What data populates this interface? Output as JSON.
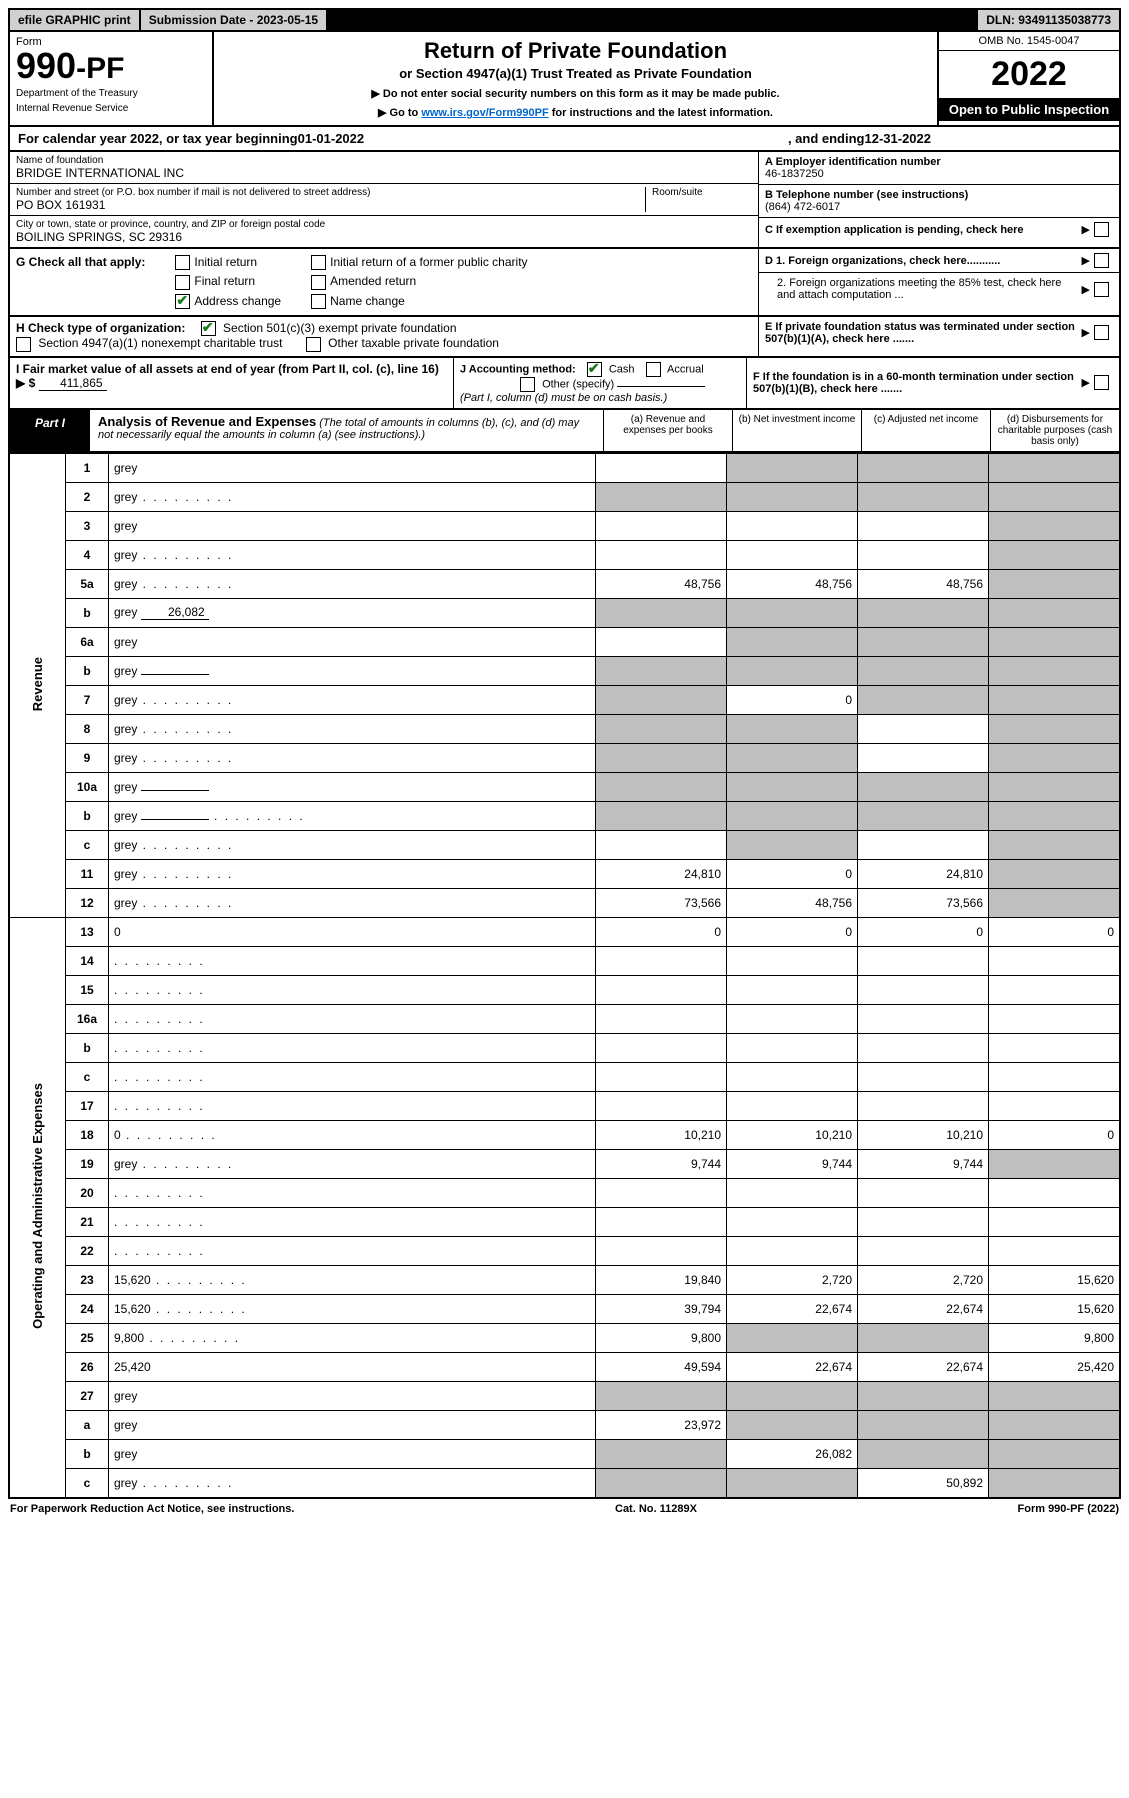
{
  "top": {
    "efile": "efile GRAPHIC print",
    "sub_date_label": "Submission Date - 2023-05-15",
    "dln": "DLN: 93491135038773"
  },
  "header": {
    "form_label": "Form",
    "form_number": "990-PF",
    "dept1": "Department of the Treasury",
    "dept2": "Internal Revenue Service",
    "title": "Return of Private Foundation",
    "subtitle": "or Section 4947(a)(1) Trust Treated as Private Foundation",
    "note1": "▶ Do not enter social security numbers on this form as it may be made public.",
    "note2_pre": "▶ Go to ",
    "note2_link": "www.irs.gov/Form990PF",
    "note2_post": " for instructions and the latest information.",
    "omb": "OMB No. 1545-0047",
    "year": "2022",
    "open": "Open to Public Inspection"
  },
  "cal_year": {
    "pre": "For calendar year 2022, or tax year beginning ",
    "begin": "01-01-2022",
    "mid": ", and ending ",
    "end": "12-31-2022"
  },
  "info": {
    "name_label": "Name of foundation",
    "name": "BRIDGE INTERNATIONAL INC",
    "addr_label": "Number and street (or P.O. box number if mail is not delivered to street address)",
    "addr": "PO BOX 161931",
    "room_label": "Room/suite",
    "city_label": "City or town, state or province, country, and ZIP or foreign postal code",
    "city": "BOILING SPRINGS, SC  29316",
    "a_label": "A Employer identification number",
    "ein": "46-1837250",
    "b_label": "B Telephone number (see instructions)",
    "phone": "(864) 472-6017",
    "c_label": "C If exemption application is pending, check here"
  },
  "g": {
    "label": "G Check all that apply:",
    "opts": [
      "Initial return",
      "Initial return of a former public charity",
      "Final return",
      "Amended return",
      "Address change",
      "Name change"
    ]
  },
  "d": {
    "d1": "D 1. Foreign organizations, check here...........",
    "d2": "2. Foreign organizations meeting the 85% test, check here and attach computation ..."
  },
  "h": {
    "label": "H Check type of organization:",
    "opt1": "Section 501(c)(3) exempt private foundation",
    "opt2": "Section 4947(a)(1) nonexempt charitable trust",
    "opt3": "Other taxable private foundation"
  },
  "e": {
    "text": "E If private foundation status was terminated under section 507(b)(1)(A), check here ......."
  },
  "i": {
    "label": "I Fair market value of all assets at end of year (from Part II, col. (c), line 16) ▶ $",
    "value": "411,865"
  },
  "j": {
    "label": "J Accounting method:",
    "cash": "Cash",
    "accrual": "Accrual",
    "other": "Other (specify)",
    "note": "(Part I, column (d) must be on cash basis.)"
  },
  "f": {
    "text": "F  If the foundation is in a 60-month termination under section 507(b)(1)(B), check here ......."
  },
  "part1": {
    "label": "Part I",
    "title": "Analysis of Revenue and Expenses",
    "note": "(The total of amounts in columns (b), (c), and (d) may not necessarily equal the amounts in column (a) (see instructions).)",
    "col_a": "(a)   Revenue and expenses per books",
    "col_b": "(b)   Net investment income",
    "col_c": "(c)   Adjusted net income",
    "col_d": "(d)  Disbursements for charitable purposes (cash basis only)"
  },
  "section_labels": {
    "revenue": "Revenue",
    "expenses": "Operating and Administrative Expenses"
  },
  "rows": [
    {
      "n": "1",
      "d": "grey",
      "a": "",
      "b": "grey",
      "c": "grey"
    },
    {
      "n": "2",
      "d": "grey",
      "dots": true,
      "a": "grey",
      "b": "grey",
      "c": "grey"
    },
    {
      "n": "3",
      "d": "grey",
      "a": "",
      "b": "",
      "c": ""
    },
    {
      "n": "4",
      "d": "grey",
      "dots": true,
      "a": "",
      "b": "",
      "c": ""
    },
    {
      "n": "5a",
      "d": "grey",
      "dots": true,
      "a": "48,756",
      "b": "48,756",
      "c": "48,756"
    },
    {
      "n": "b",
      "d": "grey",
      "inline": "26,082",
      "a": "grey",
      "b": "grey",
      "c": "grey"
    },
    {
      "n": "6a",
      "d": "grey",
      "a": "",
      "b": "grey",
      "c": "grey"
    },
    {
      "n": "b",
      "d": "grey",
      "inline": "",
      "a": "grey",
      "b": "grey",
      "c": "grey"
    },
    {
      "n": "7",
      "d": "grey",
      "dots": true,
      "a": "grey",
      "b": "0",
      "c": "grey"
    },
    {
      "n": "8",
      "d": "grey",
      "dots": true,
      "a": "grey",
      "b": "grey",
      "c": ""
    },
    {
      "n": "9",
      "d": "grey",
      "dots": true,
      "a": "grey",
      "b": "grey",
      "c": ""
    },
    {
      "n": "10a",
      "d": "grey",
      "inline": "",
      "a": "grey",
      "b": "grey",
      "c": "grey"
    },
    {
      "n": "b",
      "d": "grey",
      "dots": true,
      "inline": "",
      "a": "grey",
      "b": "grey",
      "c": "grey"
    },
    {
      "n": "c",
      "d": "grey",
      "dots": true,
      "a": "",
      "b": "grey",
      "c": ""
    },
    {
      "n": "11",
      "d": "grey",
      "dots": true,
      "a": "24,810",
      "b": "0",
      "c": "24,810"
    },
    {
      "n": "12",
      "d": "grey",
      "dots": true,
      "a": "73,566",
      "b": "48,756",
      "c": "73,566"
    },
    {
      "n": "13",
      "d": "0",
      "a": "0",
      "b": "0",
      "c": "0",
      "sec": "exp"
    },
    {
      "n": "14",
      "d": "",
      "dots": true,
      "a": "",
      "b": "",
      "c": ""
    },
    {
      "n": "15",
      "d": "",
      "dots": true,
      "a": "",
      "b": "",
      "c": ""
    },
    {
      "n": "16a",
      "d": "",
      "dots": true,
      "a": "",
      "b": "",
      "c": ""
    },
    {
      "n": "b",
      "d": "",
      "dots": true,
      "a": "",
      "b": "",
      "c": ""
    },
    {
      "n": "c",
      "d": "",
      "dots": true,
      "a": "",
      "b": "",
      "c": ""
    },
    {
      "n": "17",
      "d": "",
      "dots": true,
      "a": "",
      "b": "",
      "c": ""
    },
    {
      "n": "18",
      "d": "0",
      "dots": true,
      "a": "10,210",
      "b": "10,210",
      "c": "10,210"
    },
    {
      "n": "19",
      "d": "grey",
      "dots": true,
      "a": "9,744",
      "b": "9,744",
      "c": "9,744"
    },
    {
      "n": "20",
      "d": "",
      "dots": true,
      "a": "",
      "b": "",
      "c": ""
    },
    {
      "n": "21",
      "d": "",
      "dots": true,
      "a": "",
      "b": "",
      "c": ""
    },
    {
      "n": "22",
      "d": "",
      "dots": true,
      "a": "",
      "b": "",
      "c": ""
    },
    {
      "n": "23",
      "d": "15,620",
      "dots": true,
      "a": "19,840",
      "b": "2,720",
      "c": "2,720"
    },
    {
      "n": "24",
      "d": "15,620",
      "dots": true,
      "a": "39,794",
      "b": "22,674",
      "c": "22,674"
    },
    {
      "n": "25",
      "d": "9,800",
      "dots": true,
      "a": "9,800",
      "b": "grey",
      "c": "grey"
    },
    {
      "n": "26",
      "d": "25,420",
      "a": "49,594",
      "b": "22,674",
      "c": "22,674"
    },
    {
      "n": "27",
      "d": "grey",
      "a": "grey",
      "b": "grey",
      "c": "grey"
    },
    {
      "n": "a",
      "d": "grey",
      "a": "23,972",
      "b": "grey",
      "c": "grey"
    },
    {
      "n": "b",
      "d": "grey",
      "a": "grey",
      "b": "26,082",
      "c": "grey"
    },
    {
      "n": "c",
      "d": "grey",
      "dots": true,
      "a": "grey",
      "b": "grey",
      "c": "50,892"
    }
  ],
  "footer": {
    "left": "For Paperwork Reduction Act Notice, see instructions.",
    "mid": "Cat. No. 11289X",
    "right": "Form 990-PF (2022)"
  }
}
